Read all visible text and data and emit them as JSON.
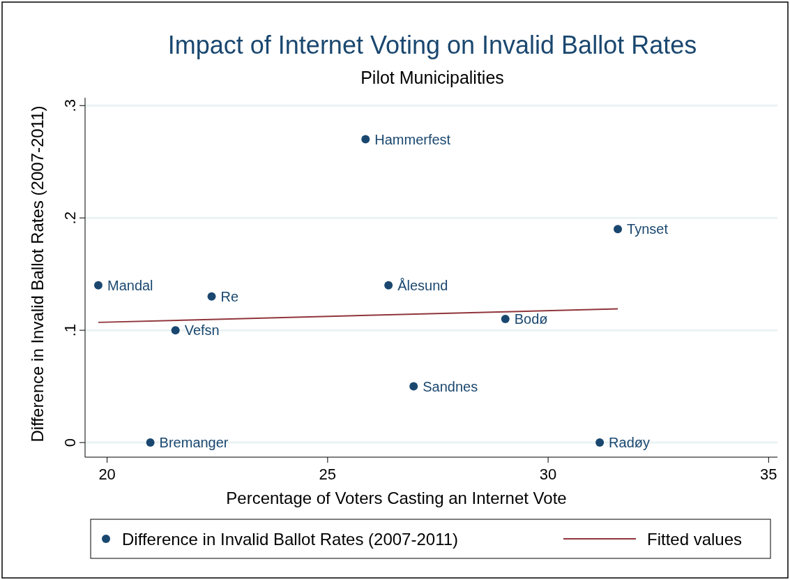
{
  "chart_data": {
    "type": "scatter",
    "title": "Impact of Internet Voting on Invalid Ballot Rates",
    "subtitle": "Pilot Municipalities",
    "xlabel": "Percentage of Voters Casting an Internet Vote",
    "ylabel": "Difference in Invalid Ballot Rates (2007-2011)",
    "xlim": [
      19.5,
      35.2
    ],
    "xticks": [
      20,
      25,
      30,
      35
    ],
    "ylim": [
      -0.013,
      0.307
    ],
    "yticks": [
      {
        "value": 0,
        "label": "0"
      },
      {
        "value": 0.1,
        "label": ".1"
      },
      {
        "value": 0.2,
        "label": ".2"
      },
      {
        "value": 0.3,
        "label": ".3"
      }
    ],
    "grid": "y",
    "legend": "bottom",
    "series": [
      {
        "name": "Difference in Invalid Ballot Rates (2007-2011)",
        "marker": "circle",
        "color": "#1a476f",
        "x": [
          19.8,
          21.55,
          22.37,
          20.98,
          25.86,
          26.38,
          26.95,
          29.03,
          31.58,
          31.17
        ],
        "values": [
          0.14,
          0.1,
          0.13,
          0,
          0.27,
          0.14,
          0.05,
          0.11,
          0.19,
          0
        ]
      },
      {
        "name": "Fitted values",
        "type": "line",
        "color": "#90353b",
        "x": [
          19.8,
          31.58
        ],
        "values": [
          0.107,
          0.119
        ]
      }
    ],
    "annotations": [
      {
        "text": "Mandal",
        "x": 19.8,
        "y": 0.14
      },
      {
        "text": "Vefsn",
        "x": 21.55,
        "y": 0.1
      },
      {
        "text": "Re",
        "x": 22.37,
        "y": 0.13
      },
      {
        "text": "Bremanger",
        "x": 20.98,
        "y": 0
      },
      {
        "text": "Hammerfest",
        "x": 25.86,
        "y": 0.27
      },
      {
        "text": "Ålesund",
        "x": 26.38,
        "y": 0.14
      },
      {
        "text": "Sandnes",
        "x": 26.95,
        "y": 0.05
      },
      {
        "text": "Bodø",
        "x": 29.03,
        "y": 0.11
      },
      {
        "text": "Tynset",
        "x": 31.58,
        "y": 0.19
      },
      {
        "text": "Radøy",
        "x": 31.17,
        "y": 0
      }
    ]
  }
}
